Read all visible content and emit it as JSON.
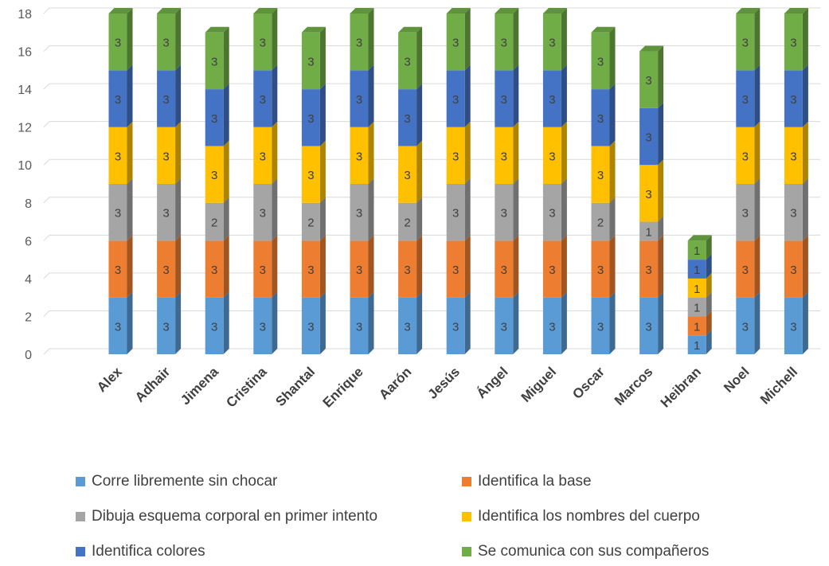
{
  "chart_data": {
    "type": "bar",
    "stacked": true,
    "style": "3d",
    "title": "",
    "xlabel": "",
    "ylabel": "",
    "ylim": [
      0,
      18
    ],
    "yticks": [
      0,
      2,
      4,
      6,
      8,
      10,
      12,
      14,
      16,
      18
    ],
    "grid": true,
    "legend_position": "bottom",
    "categories": [
      "Alex",
      "Adhair",
      "Jimena",
      "Cristina",
      "Shantal",
      "Enrique",
      "Aarón",
      "Jesús",
      "Ángel",
      "Miguel",
      "Oscar",
      "Marcos",
      "Heibran",
      "Noel",
      "Michell"
    ],
    "series": [
      {
        "name": "Corre libremente sin chocar",
        "color": "#5B9BD5",
        "values": [
          3,
          3,
          3,
          3,
          3,
          3,
          3,
          3,
          3,
          3,
          3,
          3,
          1,
          3,
          3
        ]
      },
      {
        "name": "Identifica la base",
        "color": "#ED7D31",
        "values": [
          3,
          3,
          3,
          3,
          3,
          3,
          3,
          3,
          3,
          3,
          3,
          3,
          1,
          3,
          3
        ]
      },
      {
        "name": "Dibuja esquema corporal en primer intento",
        "color": "#A5A5A5",
        "values": [
          3,
          3,
          2,
          3,
          2,
          3,
          2,
          3,
          3,
          3,
          2,
          1,
          1,
          3,
          3
        ]
      },
      {
        "name": "Identifica los nombres del cuerpo",
        "color": "#FFC000",
        "values": [
          3,
          3,
          3,
          3,
          3,
          3,
          3,
          3,
          3,
          3,
          3,
          3,
          1,
          3,
          3
        ]
      },
      {
        "name": "Identifica colores",
        "color": "#4472C4",
        "values": [
          3,
          3,
          3,
          3,
          3,
          3,
          3,
          3,
          3,
          3,
          3,
          3,
          1,
          3,
          3
        ]
      },
      {
        "name": "Se comunica con sus compañeros",
        "color": "#70AD47",
        "values": [
          3,
          3,
          3,
          3,
          3,
          3,
          3,
          3,
          3,
          3,
          3,
          3,
          1,
          3,
          3
        ]
      }
    ]
  }
}
